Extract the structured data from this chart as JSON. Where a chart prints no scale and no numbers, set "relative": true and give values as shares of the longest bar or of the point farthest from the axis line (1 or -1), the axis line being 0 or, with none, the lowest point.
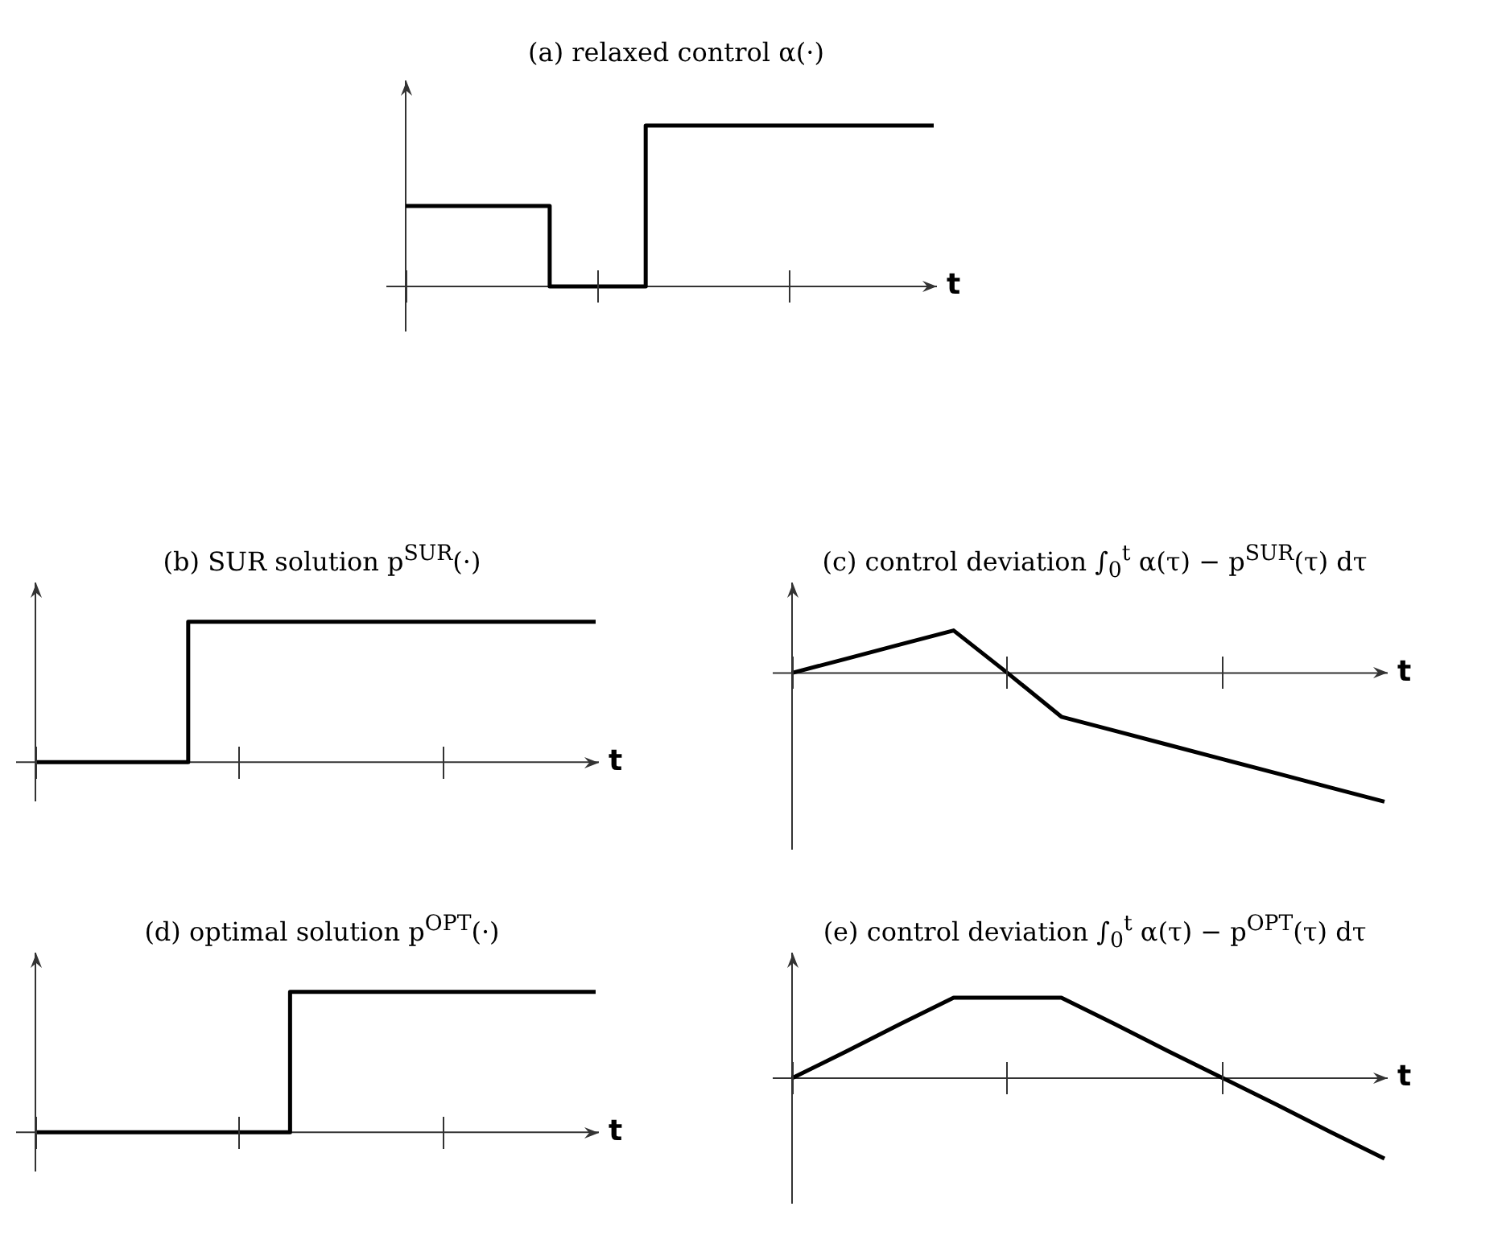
{
  "chart_data": [
    {
      "type": "step",
      "title": "(a) relaxed control α(·)",
      "xlabel": "t",
      "relative": true,
      "color": "#000000",
      "categories": [
        null,
        null,
        null,
        null,
        null,
        null,
        null,
        null,
        null,
        null,
        null,
        null
      ],
      "values": [
        0.5,
        0.5,
        0.5,
        0,
        0,
        1,
        1,
        1,
        1,
        1,
        1,
        1
      ]
    },
    {
      "type": "step",
      "title": "(b) SUR solution p$^{SUR}$(·)",
      "xlabel": "t",
      "relative": true,
      "color": "#000000",
      "categories": [
        null,
        null,
        null,
        null,
        null,
        null,
        null,
        null,
        null,
        null,
        null,
        null
      ],
      "values": [
        0,
        0,
        0,
        1,
        1,
        1,
        1,
        1,
        1,
        1,
        1,
        1
      ]
    },
    {
      "type": "line",
      "title": "(c) control deviation ∫$_{0}$$^{t}$ α(τ) − p$^{SUR}$(τ) dτ",
      "xlabel": "t",
      "relative": true,
      "color": "#000000",
      "categories": [
        null,
        null,
        null,
        null,
        null,
        null,
        null,
        null,
        null,
        null,
        null,
        null
      ],
      "values": [
        0,
        0.11,
        0.22,
        0.33,
        0,
        -0.34,
        -0.45,
        -0.56,
        -0.67,
        -0.78,
        -0.89,
        -1
      ]
    },
    {
      "type": "step",
      "title": "(d) optimal solution p$^{OPT}$(·)",
      "xlabel": "t",
      "relative": true,
      "color": "#000000",
      "categories": [
        null,
        null,
        null,
        null,
        null,
        null,
        null,
        null,
        null,
        null,
        null,
        null
      ],
      "values": [
        0,
        0,
        0,
        0,
        0,
        1,
        1,
        1,
        1,
        1,
        1,
        1
      ]
    },
    {
      "type": "line",
      "title": "(e) control deviation ∫$_{0}$$^{t}$ α(τ) − p$^{OPT}$(τ) dτ",
      "xlabel": "t",
      "relative": true,
      "color": "#000000",
      "categories": [
        null,
        null,
        null,
        null,
        null,
        null,
        null,
        null,
        null,
        null,
        null,
        null
      ],
      "values": [
        0,
        0.33,
        0.67,
        1,
        1,
        1,
        0.67,
        0.33,
        0,
        -0.33,
        -0.67,
        -1
      ]
    }
  ]
}
